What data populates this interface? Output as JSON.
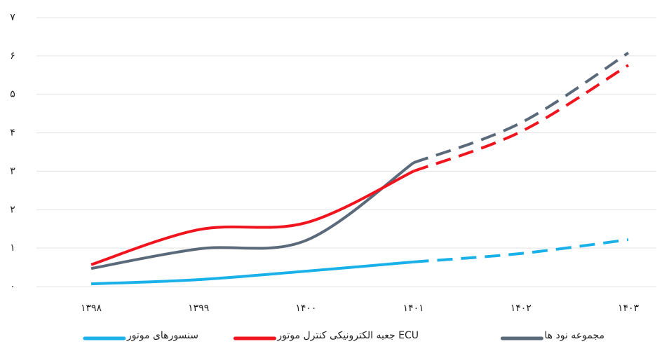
{
  "chart_data": {
    "type": "line",
    "categories": [
      "۱۳۹۸",
      "۱۳۹۹",
      "۱۴۰۰",
      "۱۴۰۱",
      "۱۴۰۲",
      "۱۴۰۳"
    ],
    "dashed_after": "۱۴۰۱",
    "series": [
      {
        "name": "مجموعه نود ها",
        "color": "#5b6a7a",
        "values": [
          0.47,
          0.98,
          1.2,
          3.22,
          4.26,
          6.08
        ]
      },
      {
        "name": "جعبه الکترونیکی کنترل موتور ECU",
        "color": "#f0141e",
        "values": [
          0.57,
          1.48,
          1.66,
          3.0,
          4.03,
          5.76
        ]
      },
      {
        "name": "سنسورهای موتور",
        "color": "#1ab0e8",
        "values": [
          0.07,
          0.18,
          0.4,
          0.64,
          0.86,
          1.22
        ]
      }
    ],
    "ylim": [
      0,
      7
    ],
    "yticks": [
      {
        "value": 0,
        "label": "۰"
      },
      {
        "value": 1,
        "label": "۱"
      },
      {
        "value": 2,
        "label": "۲"
      },
      {
        "value": 3,
        "label": "۳"
      },
      {
        "value": 4,
        "label": "۴"
      },
      {
        "value": 5,
        "label": "۵"
      },
      {
        "value": 6,
        "label": "۶"
      },
      {
        "value": 7,
        "label": "۷"
      }
    ],
    "grid": true
  }
}
